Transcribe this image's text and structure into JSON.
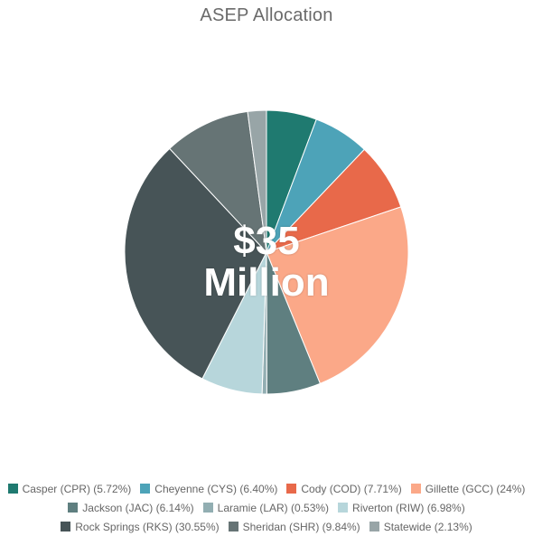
{
  "chart_data": {
    "type": "pie",
    "title": "ASEP Allocation",
    "center_label": [
      "$35",
      "Million"
    ],
    "unit": "%",
    "slices": [
      {
        "label": "Casper (CPR) (5.72%)",
        "value": 5.72,
        "color": "#1f7a70"
      },
      {
        "label": "Cheyenne (CYS) (6.40%)",
        "value": 6.4,
        "color": "#4da3b8"
      },
      {
        "label": "Cody (COD) (7.71%)",
        "value": 7.71,
        "color": "#e8694a"
      },
      {
        "label": "Gillette (GCC) (24%)",
        "value": 24.0,
        "color": "#fba888"
      },
      {
        "label": "Jackson (JAC) (6.14%)",
        "value": 6.14,
        "color": "#5f7f80"
      },
      {
        "label": "Laramie (LAR) (0.53%)",
        "value": 0.53,
        "color": "#92aeb2"
      },
      {
        "label": "Riverton (RIW) (6.98%)",
        "value": 6.98,
        "color": "#b7d6db"
      },
      {
        "label": "Rock Springs (RKS) (30.55%)",
        "value": 30.55,
        "color": "#475457"
      },
      {
        "label": "Sheridan (SHR) (9.84%)",
        "value": 9.84,
        "color": "#667475"
      },
      {
        "label": "Statewide (2.13%)",
        "value": 2.13,
        "color": "#98a5a7"
      }
    ],
    "legend_position": "bottom",
    "legend_rows": [
      [
        0,
        1,
        2,
        3
      ],
      [
        4,
        5,
        6
      ],
      [
        7,
        8,
        9
      ]
    ]
  }
}
